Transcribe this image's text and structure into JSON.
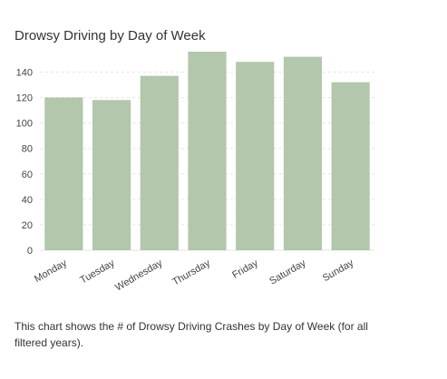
{
  "chart_data": {
    "type": "bar",
    "title": "Drowsy Driving by Day of Week",
    "xlabel": "",
    "ylabel": "",
    "categories": [
      "Monday",
      "Tuesday",
      "Wednesday",
      "Thursday",
      "Friday",
      "Saturday",
      "Sunday"
    ],
    "values": [
      120,
      118,
      137,
      156,
      148,
      152,
      132
    ],
    "yticks": [
      0,
      20,
      40,
      60,
      80,
      100,
      120,
      140
    ],
    "ylim": [
      0,
      156
    ],
    "grid": true,
    "legend": "none",
    "bar_color": "#b2c7ab",
    "grid_color": "#e6e6e6"
  },
  "caption": "This chart shows the # of Drowsy Driving Crashes by Day of Week (for all filtered years)."
}
